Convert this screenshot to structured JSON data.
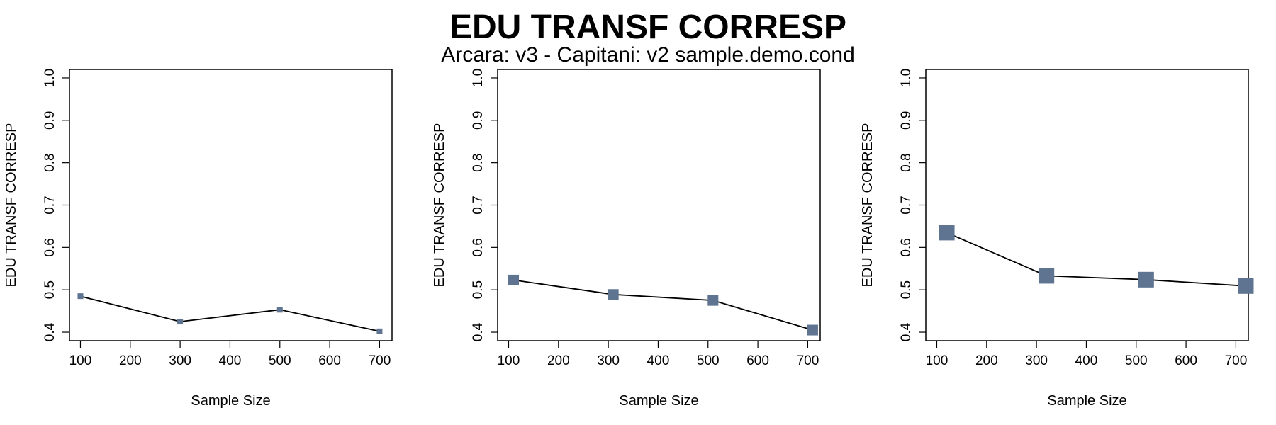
{
  "title": "EDU TRANSF CORRESP",
  "subtitle": "Arcara: v3 - Capitani: v2 sample.demo.cond",
  "colors": {
    "marker": "#5e7491",
    "line": "#000000",
    "axis": "#000000"
  },
  "chart_data": [
    {
      "type": "line",
      "xlabel": "Sample Size",
      "ylabel": "EDU TRANSF CORRESP",
      "xticks": [
        100,
        200,
        300,
        400,
        500,
        600,
        700
      ],
      "yticks": [
        0.4,
        0.5,
        0.6,
        0.7,
        0.8,
        0.9,
        1.0
      ],
      "ytick_labels": [
        "0.4",
        "0.5",
        "0.6",
        "0.7",
        "0.8",
        "0.9",
        "1.0"
      ],
      "xlim": [
        78,
        725
      ],
      "ylim": [
        0.38,
        1.02
      ],
      "marker": "square",
      "series": [
        {
          "x": [
            100,
            300,
            500,
            700
          ],
          "y": [
            0.485,
            0.425,
            0.453,
            0.402
          ]
        }
      ]
    },
    {
      "type": "line",
      "xlabel": "Sample Size",
      "ylabel": "EDU TRANSF CORRESP",
      "xticks": [
        100,
        200,
        300,
        400,
        500,
        600,
        700
      ],
      "yticks": [
        0.4,
        0.5,
        0.6,
        0.7,
        0.8,
        0.9,
        1.0
      ],
      "ytick_labels": [
        "0.4",
        "0.5",
        "0.6",
        "0.7",
        "0.8",
        "0.9",
        "1.0"
      ],
      "xlim": [
        78,
        725
      ],
      "ylim": [
        0.38,
        1.02
      ],
      "marker": "square",
      "series": [
        {
          "x": [
            110,
            310,
            510,
            710
          ],
          "y": [
            0.523,
            0.489,
            0.475,
            0.405
          ]
        }
      ]
    },
    {
      "type": "line",
      "xlabel": "Sample Size",
      "ylabel": "EDU TRANSF CORRESP",
      "xticks": [
        100,
        200,
        300,
        400,
        500,
        600,
        700
      ],
      "yticks": [
        0.4,
        0.5,
        0.6,
        0.7,
        0.8,
        0.9,
        1.0
      ],
      "ytick_labels": [
        "0.4",
        "0.5",
        "0.6",
        "0.7",
        "0.8",
        "0.9",
        "1.0"
      ],
      "xlim": [
        78,
        725
      ],
      "ylim": [
        0.38,
        1.02
      ],
      "marker": "square",
      "series": [
        {
          "x": [
            120,
            320,
            520,
            720
          ],
          "y": [
            0.635,
            0.533,
            0.524,
            0.509
          ]
        }
      ]
    }
  ]
}
